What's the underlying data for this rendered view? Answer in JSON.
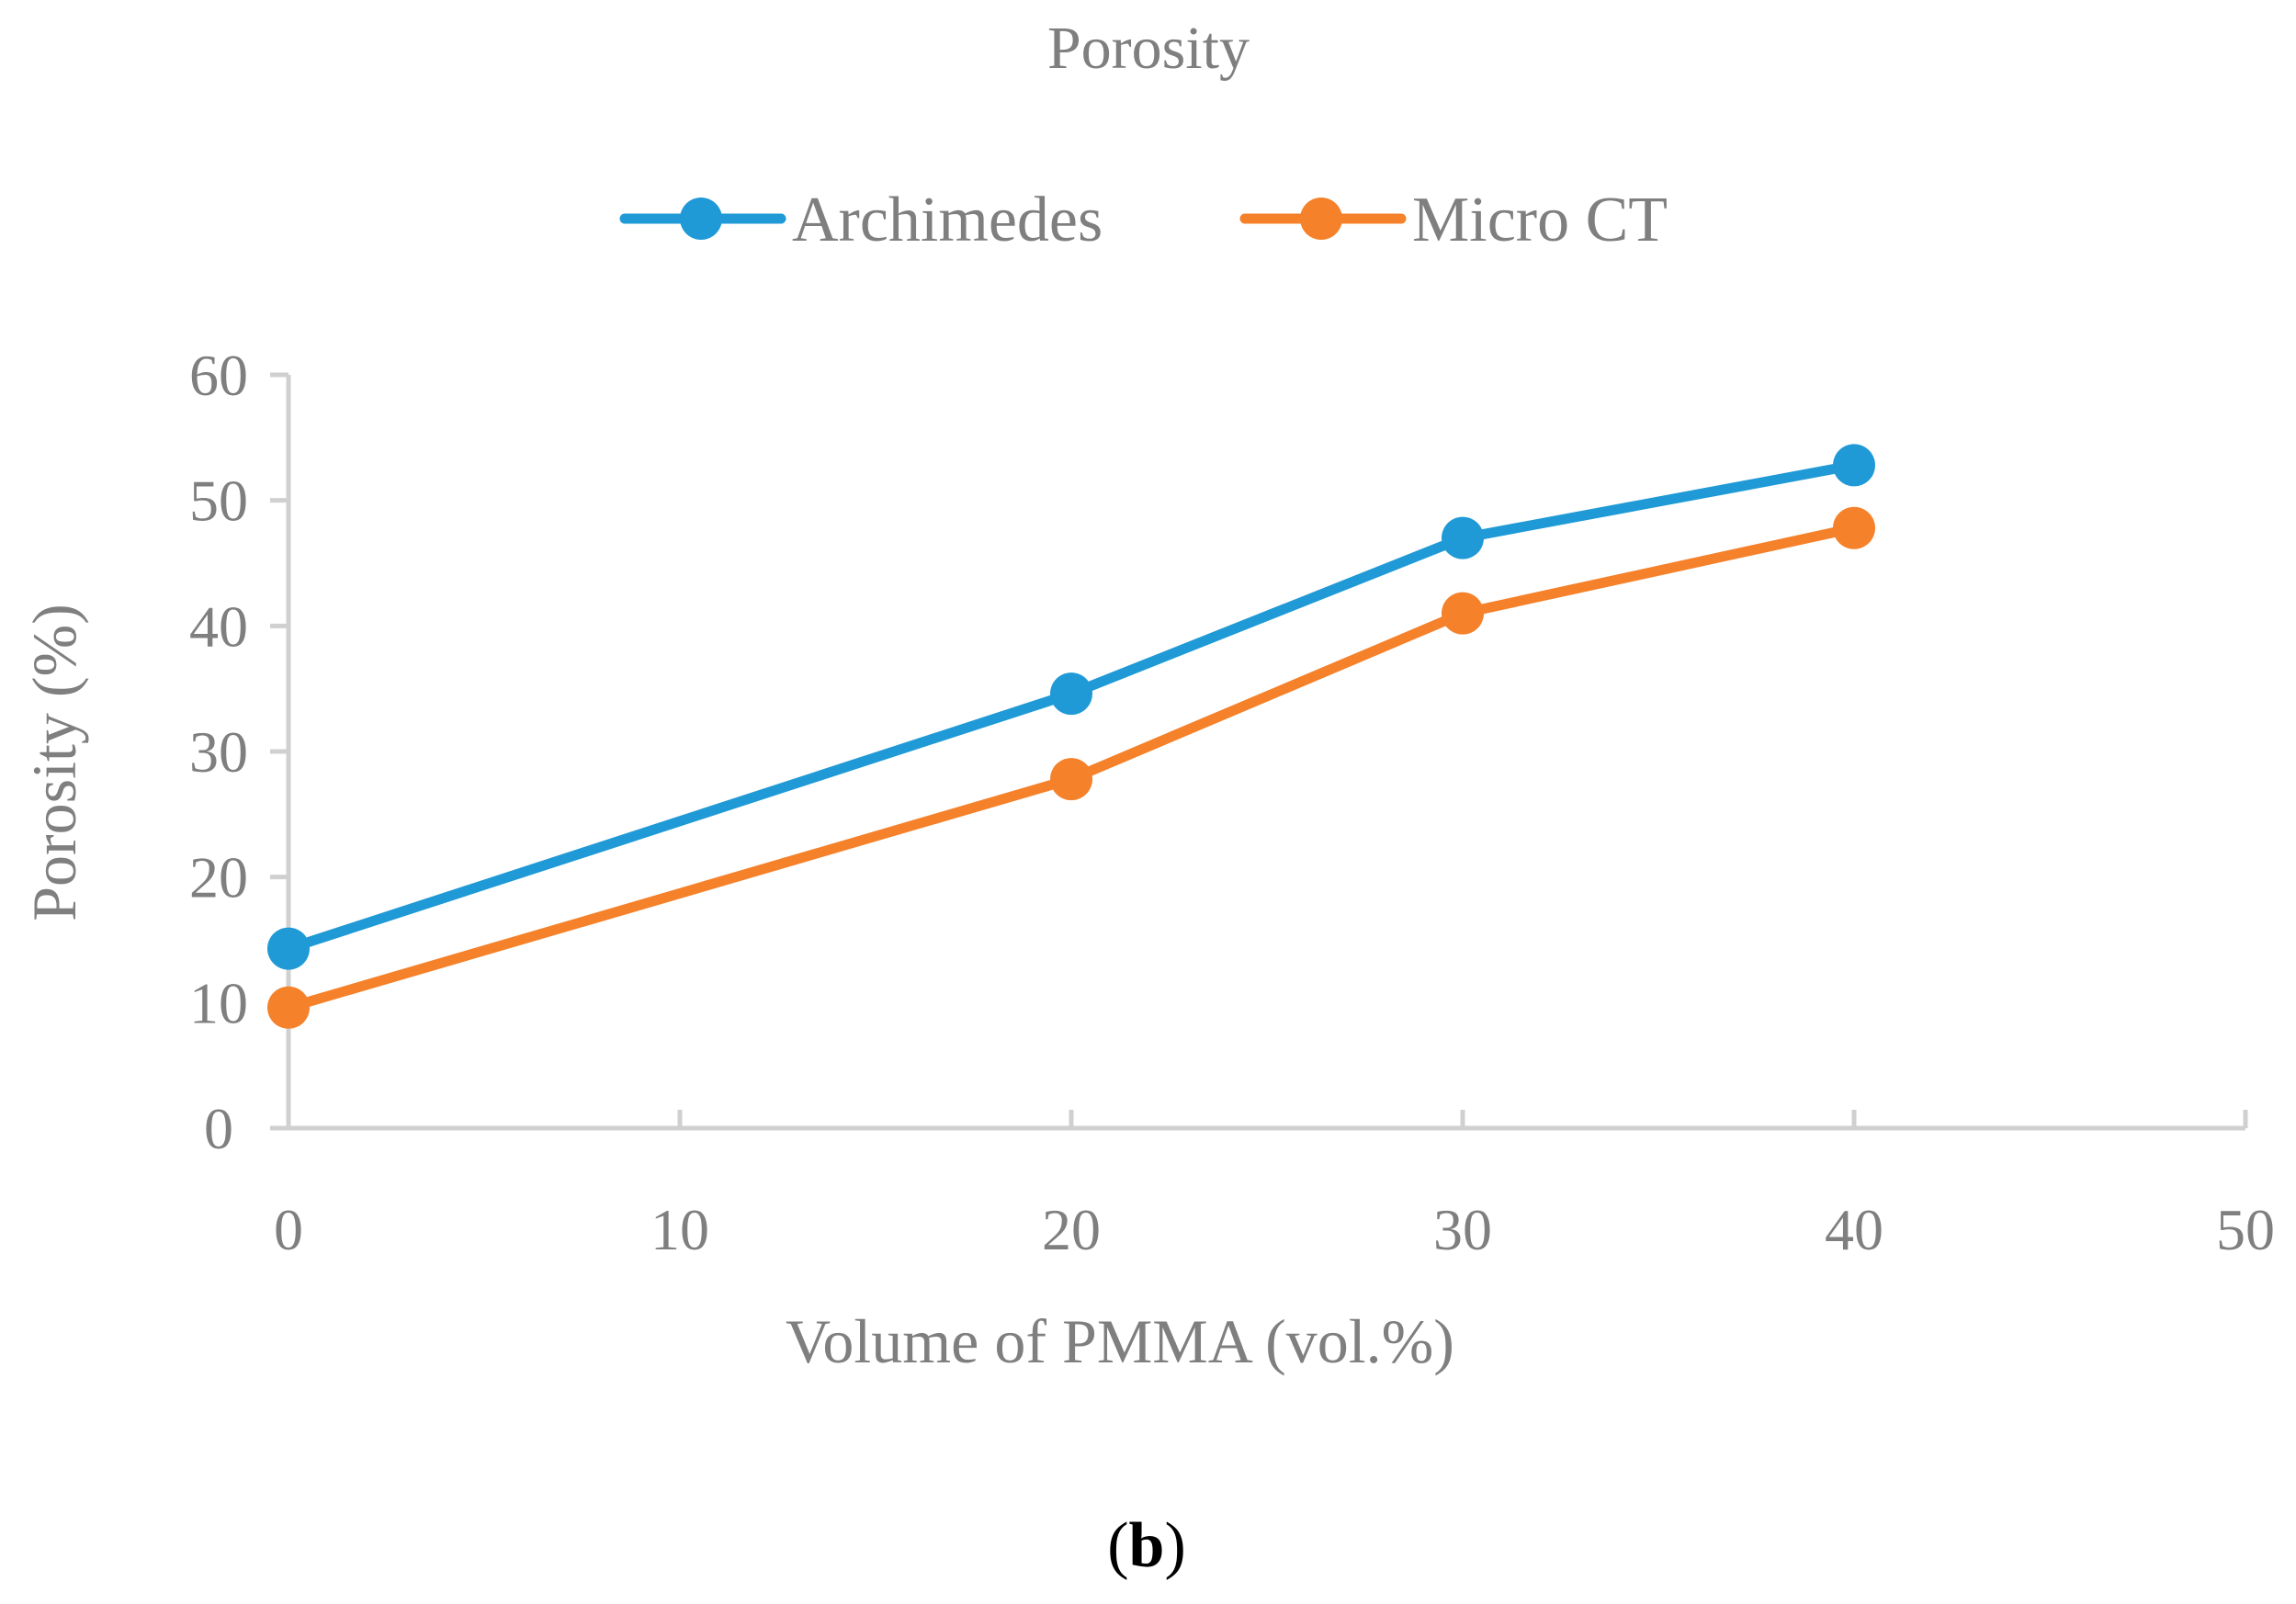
{
  "chart_data": {
    "type": "line",
    "title": "Porosity",
    "xlabel": "Volume of PMMA (vol.%)",
    "ylabel": "Porosity (%)",
    "x": [
      0,
      20,
      30,
      40
    ],
    "xlim": [
      0,
      50
    ],
    "ylim": [
      0,
      60
    ],
    "xticks": [
      "0",
      "10",
      "20",
      "30",
      "40",
      "50"
    ],
    "yticks": [
      "0",
      "10",
      "20",
      "30",
      "40",
      "50",
      "60"
    ],
    "grid": false,
    "legend_position": "top",
    "series": [
      {
        "name": "Archimedes",
        "values": [
          14.3,
          34.6,
          47.0,
          52.8
        ],
        "color": "#1f9ad6"
      },
      {
        "name": "Micro CT",
        "values": [
          9.6,
          27.8,
          41.0,
          47.8
        ],
        "color": "#f5812a"
      }
    ]
  },
  "caption": {
    "open": "(",
    "letter": "b",
    "close": ")"
  }
}
